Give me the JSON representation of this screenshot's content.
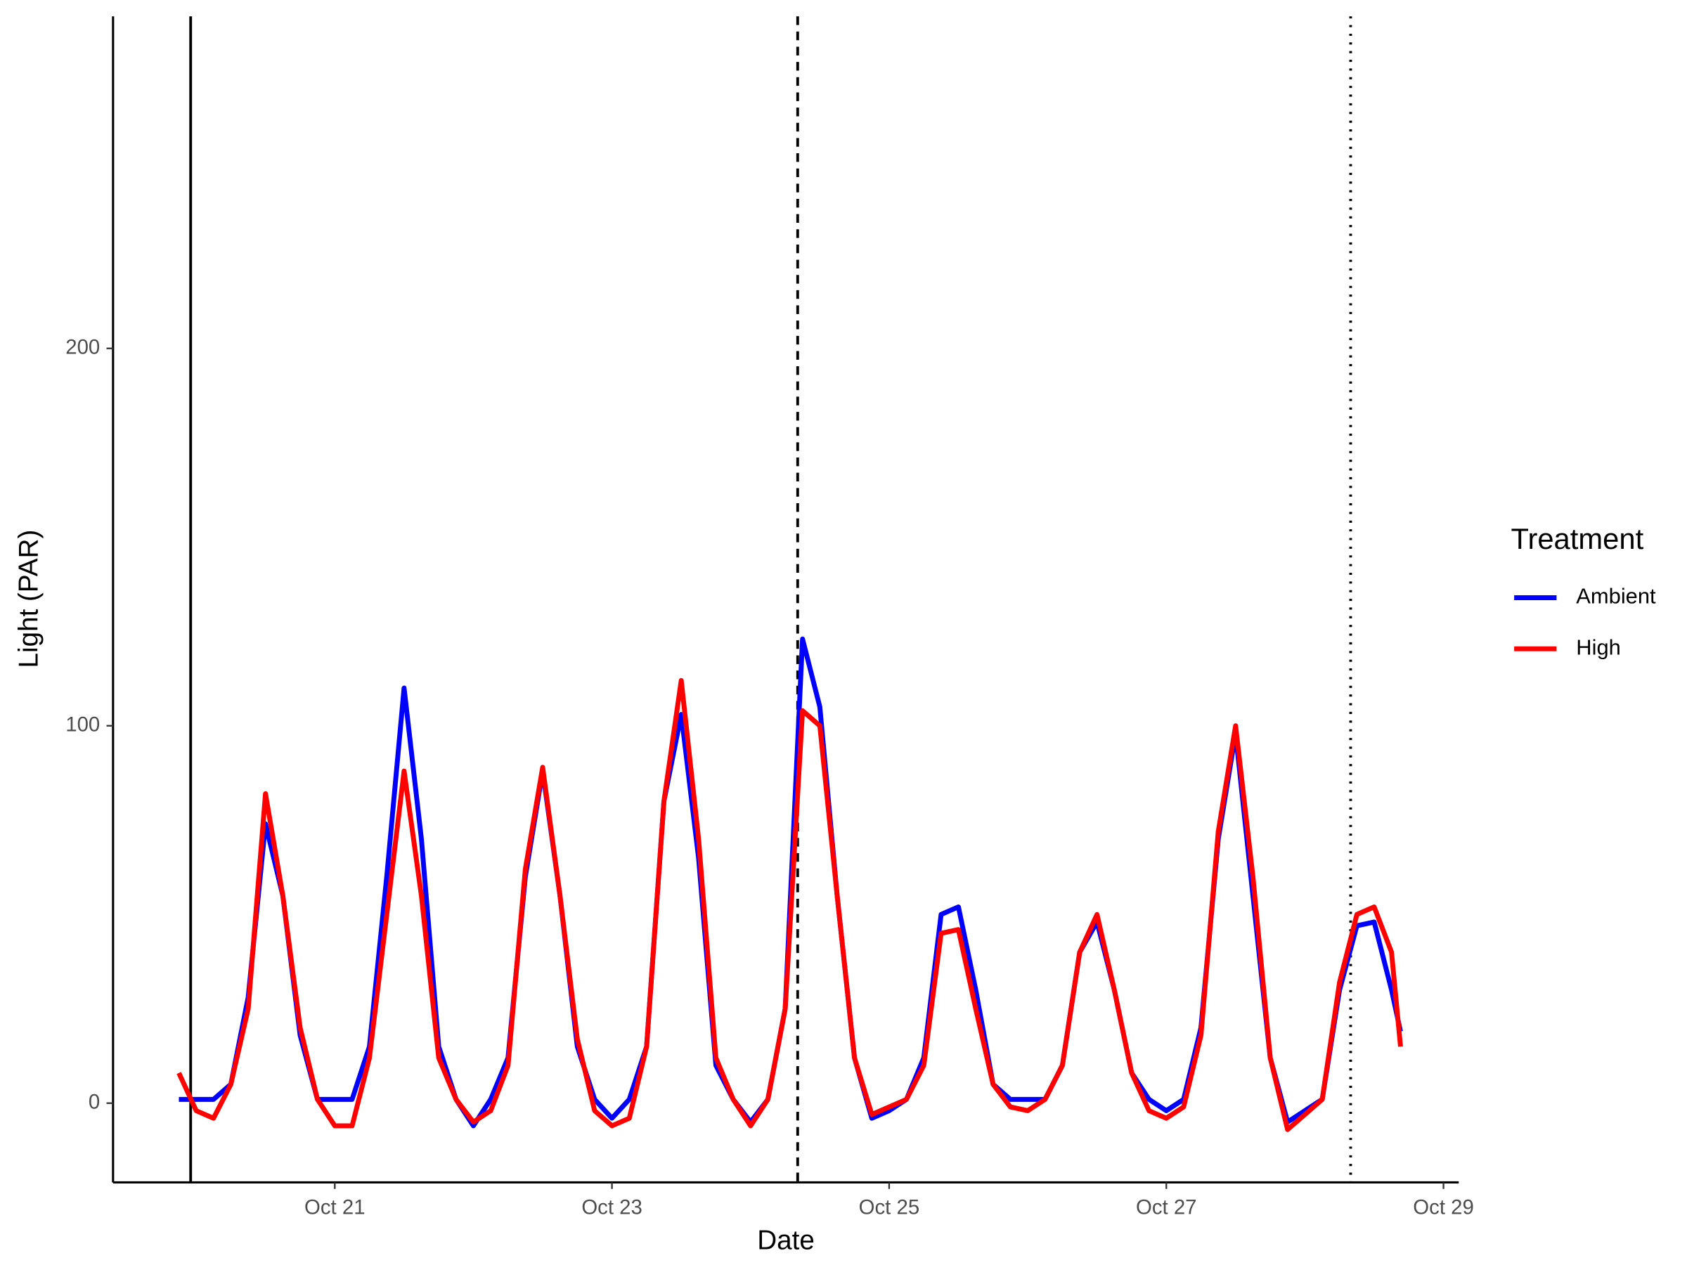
{
  "chart_data": {
    "type": "line",
    "xlabel": "Date",
    "ylabel": "Light (PAR)",
    "x": [
      19.875,
      20.0,
      20.125,
      20.25,
      20.375,
      20.5,
      20.625,
      20.75,
      20.875,
      21.0,
      21.125,
      21.25,
      21.375,
      21.5,
      21.625,
      21.75,
      21.875,
      22.0,
      22.125,
      22.25,
      22.375,
      22.5,
      22.625,
      22.75,
      22.875,
      23.0,
      23.125,
      23.25,
      23.375,
      23.5,
      23.625,
      23.75,
      23.875,
      24.0,
      24.125,
      24.25,
      24.375,
      24.5,
      24.625,
      24.75,
      24.875,
      25.0,
      25.125,
      25.25,
      25.375,
      25.5,
      25.625,
      25.75,
      25.875,
      26.0,
      26.125,
      26.25,
      26.375,
      26.5,
      26.625,
      26.75,
      26.875,
      27.0,
      27.125,
      27.25,
      27.375,
      27.5,
      27.625,
      27.75,
      27.875,
      28.0,
      28.125,
      28.25,
      28.375,
      28.5,
      28.625,
      28.69
    ],
    "series": [
      {
        "name": "Ambient",
        "color": "#0000ff",
        "values": [
          1,
          1,
          1,
          5,
          28,
          74,
          55,
          18,
          1,
          1,
          1,
          15,
          60,
          110,
          70,
          15,
          1,
          -6,
          1,
          12,
          60,
          88,
          55,
          15,
          1,
          -4,
          1,
          15,
          80,
          103,
          65,
          10,
          1,
          -5,
          1,
          25,
          123,
          105,
          55,
          12,
          -4,
          -2,
          1,
          12,
          50,
          52,
          30,
          5,
          1,
          1,
          1,
          10,
          40,
          48,
          30,
          8,
          1,
          -2,
          1,
          20,
          70,
          98,
          55,
          12,
          -5,
          -2,
          1,
          30,
          47,
          48,
          30,
          19
        ]
      },
      {
        "name": "High",
        "color": "#ff0000",
        "values": [
          8,
          -2,
          -4,
          5,
          25,
          82,
          55,
          20,
          1,
          -6,
          -6,
          12,
          50,
          88,
          55,
          12,
          1,
          -5,
          -2,
          10,
          62,
          89,
          55,
          17,
          -2,
          -6,
          -4,
          15,
          80,
          112,
          70,
          12,
          1,
          -6,
          1,
          25,
          104,
          100,
          55,
          12,
          -3,
          -1,
          1,
          10,
          45,
          46,
          25,
          5,
          -1,
          -2,
          1,
          10,
          40,
          50,
          30,
          8,
          -2,
          -4,
          -1,
          18,
          72,
          100,
          60,
          12,
          -7,
          -3,
          1,
          32,
          50,
          52,
          40,
          15
        ]
      }
    ],
    "xlim": [
      19.4,
      29.11
    ],
    "xticks": [
      {
        "value": 21,
        "label": "Oct 21"
      },
      {
        "value": 23,
        "label": "Oct 23"
      },
      {
        "value": 25,
        "label": "Oct 25"
      },
      {
        "value": 27,
        "label": "Oct 27"
      },
      {
        "value": 29,
        "label": "Oct 29"
      }
    ],
    "ylim": [
      -21,
      288
    ],
    "yticks": [
      0,
      100,
      200
    ],
    "grid": false,
    "legend_title": "Treatment",
    "legend": "right",
    "vlines": [
      {
        "x": 19.96,
        "linetype": "solid"
      },
      {
        "x": 24.34,
        "linetype": "dashed"
      },
      {
        "x": 28.33,
        "linetype": "dotted"
      }
    ]
  }
}
